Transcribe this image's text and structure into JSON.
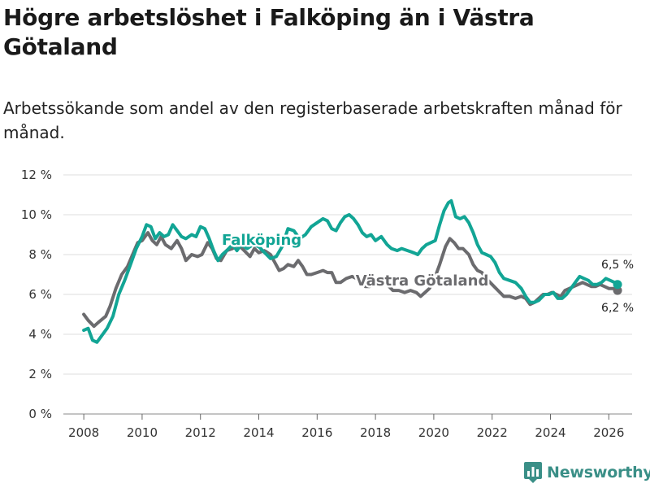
{
  "title": "Högre arbetslöshet i Falköping än i Västra Götaland",
  "subtitle": "Arbetssökande som andel av den registerbaserade arbetskraften månad för månad.",
  "brand": {
    "name": "Newsworthy",
    "icon": "bar-chart-logo-icon"
  },
  "colors": {
    "falkoping": "#12a595",
    "vastra": "#6b6b6e",
    "grid": "#dcdcdc",
    "brand": "#3a8f87"
  },
  "chart_data": {
    "type": "line",
    "title": "Högre arbetslöshet i Falköping än i Västra Götaland",
    "xlabel": "",
    "ylabel": "",
    "xlim": [
      2007.3,
      2026.8
    ],
    "ylim": [
      0,
      12
    ],
    "x_ticks": [
      2008,
      2010,
      2012,
      2014,
      2016,
      2018,
      2020,
      2022,
      2024,
      2026
    ],
    "y_ticks": [
      {
        "value": 0,
        "label": "0 %"
      },
      {
        "value": 2,
        "label": "2 %"
      },
      {
        "value": 4,
        "label": "4 %"
      },
      {
        "value": 6,
        "label": "6 %"
      },
      {
        "value": 8,
        "label": "8 %"
      },
      {
        "value": 10,
        "label": "10 %"
      },
      {
        "value": 12,
        "label": "12 %"
      }
    ],
    "grid": true,
    "series": [
      {
        "name": "Västra Götaland",
        "color": "#6b6b6e",
        "points": [
          [
            2008.0,
            5.0
          ],
          [
            2008.15,
            4.7
          ],
          [
            2008.35,
            4.4
          ],
          [
            2008.5,
            4.6
          ],
          [
            2008.75,
            4.9
          ],
          [
            2008.9,
            5.4
          ],
          [
            2009.1,
            6.3
          ],
          [
            2009.3,
            7.0
          ],
          [
            2009.5,
            7.4
          ],
          [
            2009.7,
            8.1
          ],
          [
            2009.85,
            8.6
          ],
          [
            2010.0,
            8.7
          ],
          [
            2010.2,
            9.1
          ],
          [
            2010.35,
            8.7
          ],
          [
            2010.5,
            8.5
          ],
          [
            2010.65,
            8.9
          ],
          [
            2010.8,
            8.5
          ],
          [
            2011.0,
            8.3
          ],
          [
            2011.2,
            8.7
          ],
          [
            2011.35,
            8.3
          ],
          [
            2011.5,
            7.7
          ],
          [
            2011.7,
            8.0
          ],
          [
            2011.9,
            7.9
          ],
          [
            2012.05,
            8.0
          ],
          [
            2012.25,
            8.6
          ],
          [
            2012.4,
            8.3
          ],
          [
            2012.55,
            7.8
          ],
          [
            2012.7,
            7.7
          ],
          [
            2012.9,
            8.2
          ],
          [
            2013.1,
            8.3
          ],
          [
            2013.3,
            8.5
          ],
          [
            2013.5,
            8.2
          ],
          [
            2013.7,
            7.9
          ],
          [
            2013.85,
            8.3
          ],
          [
            2014.0,
            8.1
          ],
          [
            2014.2,
            8.2
          ],
          [
            2014.4,
            8.0
          ],
          [
            2014.55,
            7.6
          ],
          [
            2014.7,
            7.2
          ],
          [
            2014.85,
            7.3
          ],
          [
            2015.0,
            7.5
          ],
          [
            2015.2,
            7.4
          ],
          [
            2015.35,
            7.7
          ],
          [
            2015.5,
            7.4
          ],
          [
            2015.65,
            7.0
          ],
          [
            2015.8,
            7.0
          ],
          [
            2016.0,
            7.1
          ],
          [
            2016.2,
            7.2
          ],
          [
            2016.35,
            7.1
          ],
          [
            2016.5,
            7.1
          ],
          [
            2016.65,
            6.6
          ],
          [
            2016.8,
            6.6
          ],
          [
            2017.0,
            6.8
          ],
          [
            2017.2,
            6.9
          ],
          [
            2017.35,
            6.8
          ],
          [
            2017.5,
            6.7
          ],
          [
            2017.65,
            6.4
          ],
          [
            2017.8,
            6.4
          ],
          [
            2018.0,
            6.6
          ],
          [
            2018.2,
            6.6
          ],
          [
            2018.4,
            6.5
          ],
          [
            2018.6,
            6.2
          ],
          [
            2018.8,
            6.2
          ],
          [
            2019.0,
            6.1
          ],
          [
            2019.2,
            6.2
          ],
          [
            2019.4,
            6.1
          ],
          [
            2019.55,
            5.9
          ],
          [
            2019.7,
            6.1
          ],
          [
            2019.85,
            6.3
          ],
          [
            2020.0,
            6.7
          ],
          [
            2020.2,
            7.5
          ],
          [
            2020.4,
            8.4
          ],
          [
            2020.55,
            8.8
          ],
          [
            2020.7,
            8.6
          ],
          [
            2020.85,
            8.3
          ],
          [
            2021.0,
            8.3
          ],
          [
            2021.2,
            8.0
          ],
          [
            2021.35,
            7.5
          ],
          [
            2021.5,
            7.2
          ],
          [
            2021.65,
            7.1
          ],
          [
            2021.8,
            6.8
          ],
          [
            2022.0,
            6.5
          ],
          [
            2022.2,
            6.2
          ],
          [
            2022.4,
            5.9
          ],
          [
            2022.6,
            5.9
          ],
          [
            2022.8,
            5.8
          ],
          [
            2023.0,
            5.9
          ],
          [
            2023.15,
            5.8
          ],
          [
            2023.3,
            5.5
          ],
          [
            2023.45,
            5.6
          ],
          [
            2023.6,
            5.8
          ],
          [
            2023.75,
            6.0
          ],
          [
            2023.9,
            6.0
          ],
          [
            2024.05,
            6.1
          ],
          [
            2024.2,
            6.0
          ],
          [
            2024.35,
            5.9
          ],
          [
            2024.5,
            6.2
          ],
          [
            2024.65,
            6.3
          ],
          [
            2024.8,
            6.4
          ],
          [
            2024.95,
            6.5
          ],
          [
            2025.1,
            6.6
          ],
          [
            2025.25,
            6.5
          ],
          [
            2025.4,
            6.4
          ],
          [
            2025.55,
            6.4
          ],
          [
            2025.7,
            6.5
          ],
          [
            2025.85,
            6.4
          ],
          [
            2026.0,
            6.3
          ],
          [
            2026.15,
            6.3
          ],
          [
            2026.3,
            6.2
          ]
        ],
        "end_label": "6,2 %",
        "label": "Västra Götaland"
      },
      {
        "name": "Falköping",
        "color": "#12a595",
        "points": [
          [
            2008.0,
            4.2
          ],
          [
            2008.15,
            4.3
          ],
          [
            2008.3,
            3.7
          ],
          [
            2008.45,
            3.6
          ],
          [
            2008.6,
            3.9
          ],
          [
            2008.8,
            4.3
          ],
          [
            2009.0,
            4.9
          ],
          [
            2009.2,
            6.0
          ],
          [
            2009.4,
            6.7
          ],
          [
            2009.6,
            7.5
          ],
          [
            2009.8,
            8.3
          ],
          [
            2010.0,
            8.9
          ],
          [
            2010.15,
            9.5
          ],
          [
            2010.3,
            9.4
          ],
          [
            2010.45,
            8.8
          ],
          [
            2010.6,
            9.1
          ],
          [
            2010.75,
            8.9
          ],
          [
            2010.9,
            9.0
          ],
          [
            2011.05,
            9.5
          ],
          [
            2011.2,
            9.2
          ],
          [
            2011.35,
            8.9
          ],
          [
            2011.5,
            8.8
          ],
          [
            2011.7,
            9.0
          ],
          [
            2011.85,
            8.9
          ],
          [
            2012.0,
            9.4
          ],
          [
            2012.15,
            9.3
          ],
          [
            2012.3,
            8.8
          ],
          [
            2012.45,
            8.2
          ],
          [
            2012.6,
            7.7
          ],
          [
            2012.75,
            8.0
          ],
          [
            2012.9,
            8.2
          ],
          [
            2013.1,
            8.5
          ],
          [
            2013.25,
            8.2
          ],
          [
            2013.4,
            8.5
          ],
          [
            2013.6,
            8.3
          ],
          [
            2013.8,
            8.5
          ],
          [
            2014.0,
            8.4
          ],
          [
            2014.2,
            8.1
          ],
          [
            2014.4,
            7.8
          ],
          [
            2014.6,
            7.9
          ],
          [
            2014.8,
            8.4
          ],
          [
            2015.0,
            9.3
          ],
          [
            2015.2,
            9.2
          ],
          [
            2015.4,
            8.8
          ],
          [
            2015.6,
            9.0
          ],
          [
            2015.8,
            9.4
          ],
          [
            2016.0,
            9.6
          ],
          [
            2016.2,
            9.8
          ],
          [
            2016.35,
            9.7
          ],
          [
            2016.5,
            9.3
          ],
          [
            2016.65,
            9.2
          ],
          [
            2016.8,
            9.6
          ],
          [
            2016.95,
            9.9
          ],
          [
            2017.1,
            10.0
          ],
          [
            2017.25,
            9.8
          ],
          [
            2017.4,
            9.5
          ],
          [
            2017.55,
            9.1
          ],
          [
            2017.7,
            8.9
          ],
          [
            2017.85,
            9.0
          ],
          [
            2018.0,
            8.7
          ],
          [
            2018.2,
            8.9
          ],
          [
            2018.4,
            8.5
          ],
          [
            2018.55,
            8.3
          ],
          [
            2018.75,
            8.2
          ],
          [
            2018.9,
            8.3
          ],
          [
            2019.1,
            8.2
          ],
          [
            2019.3,
            8.1
          ],
          [
            2019.45,
            8.0
          ],
          [
            2019.6,
            8.3
          ],
          [
            2019.75,
            8.5
          ],
          [
            2019.9,
            8.6
          ],
          [
            2020.05,
            8.7
          ],
          [
            2020.2,
            9.5
          ],
          [
            2020.35,
            10.2
          ],
          [
            2020.5,
            10.6
          ],
          [
            2020.6,
            10.7
          ],
          [
            2020.75,
            9.9
          ],
          [
            2020.9,
            9.8
          ],
          [
            2021.05,
            9.9
          ],
          [
            2021.2,
            9.6
          ],
          [
            2021.35,
            9.1
          ],
          [
            2021.5,
            8.5
          ],
          [
            2021.65,
            8.1
          ],
          [
            2021.8,
            8.0
          ],
          [
            2021.95,
            7.9
          ],
          [
            2022.1,
            7.6
          ],
          [
            2022.25,
            7.1
          ],
          [
            2022.4,
            6.8
          ],
          [
            2022.6,
            6.7
          ],
          [
            2022.8,
            6.6
          ],
          [
            2023.0,
            6.3
          ],
          [
            2023.15,
            5.9
          ],
          [
            2023.3,
            5.6
          ],
          [
            2023.45,
            5.6
          ],
          [
            2023.6,
            5.7
          ],
          [
            2023.8,
            6.0
          ],
          [
            2023.95,
            6.0
          ],
          [
            2024.1,
            6.1
          ],
          [
            2024.25,
            5.8
          ],
          [
            2024.4,
            5.8
          ],
          [
            2024.55,
            6.0
          ],
          [
            2024.7,
            6.3
          ],
          [
            2024.85,
            6.6
          ],
          [
            2025.0,
            6.9
          ],
          [
            2025.15,
            6.8
          ],
          [
            2025.3,
            6.7
          ],
          [
            2025.45,
            6.5
          ],
          [
            2025.6,
            6.5
          ],
          [
            2025.75,
            6.6
          ],
          [
            2025.9,
            6.8
          ],
          [
            2026.05,
            6.7
          ],
          [
            2026.2,
            6.6
          ],
          [
            2026.3,
            6.5
          ]
        ],
        "end_label": "6,5 %",
        "label": "Falköping"
      }
    ]
  }
}
